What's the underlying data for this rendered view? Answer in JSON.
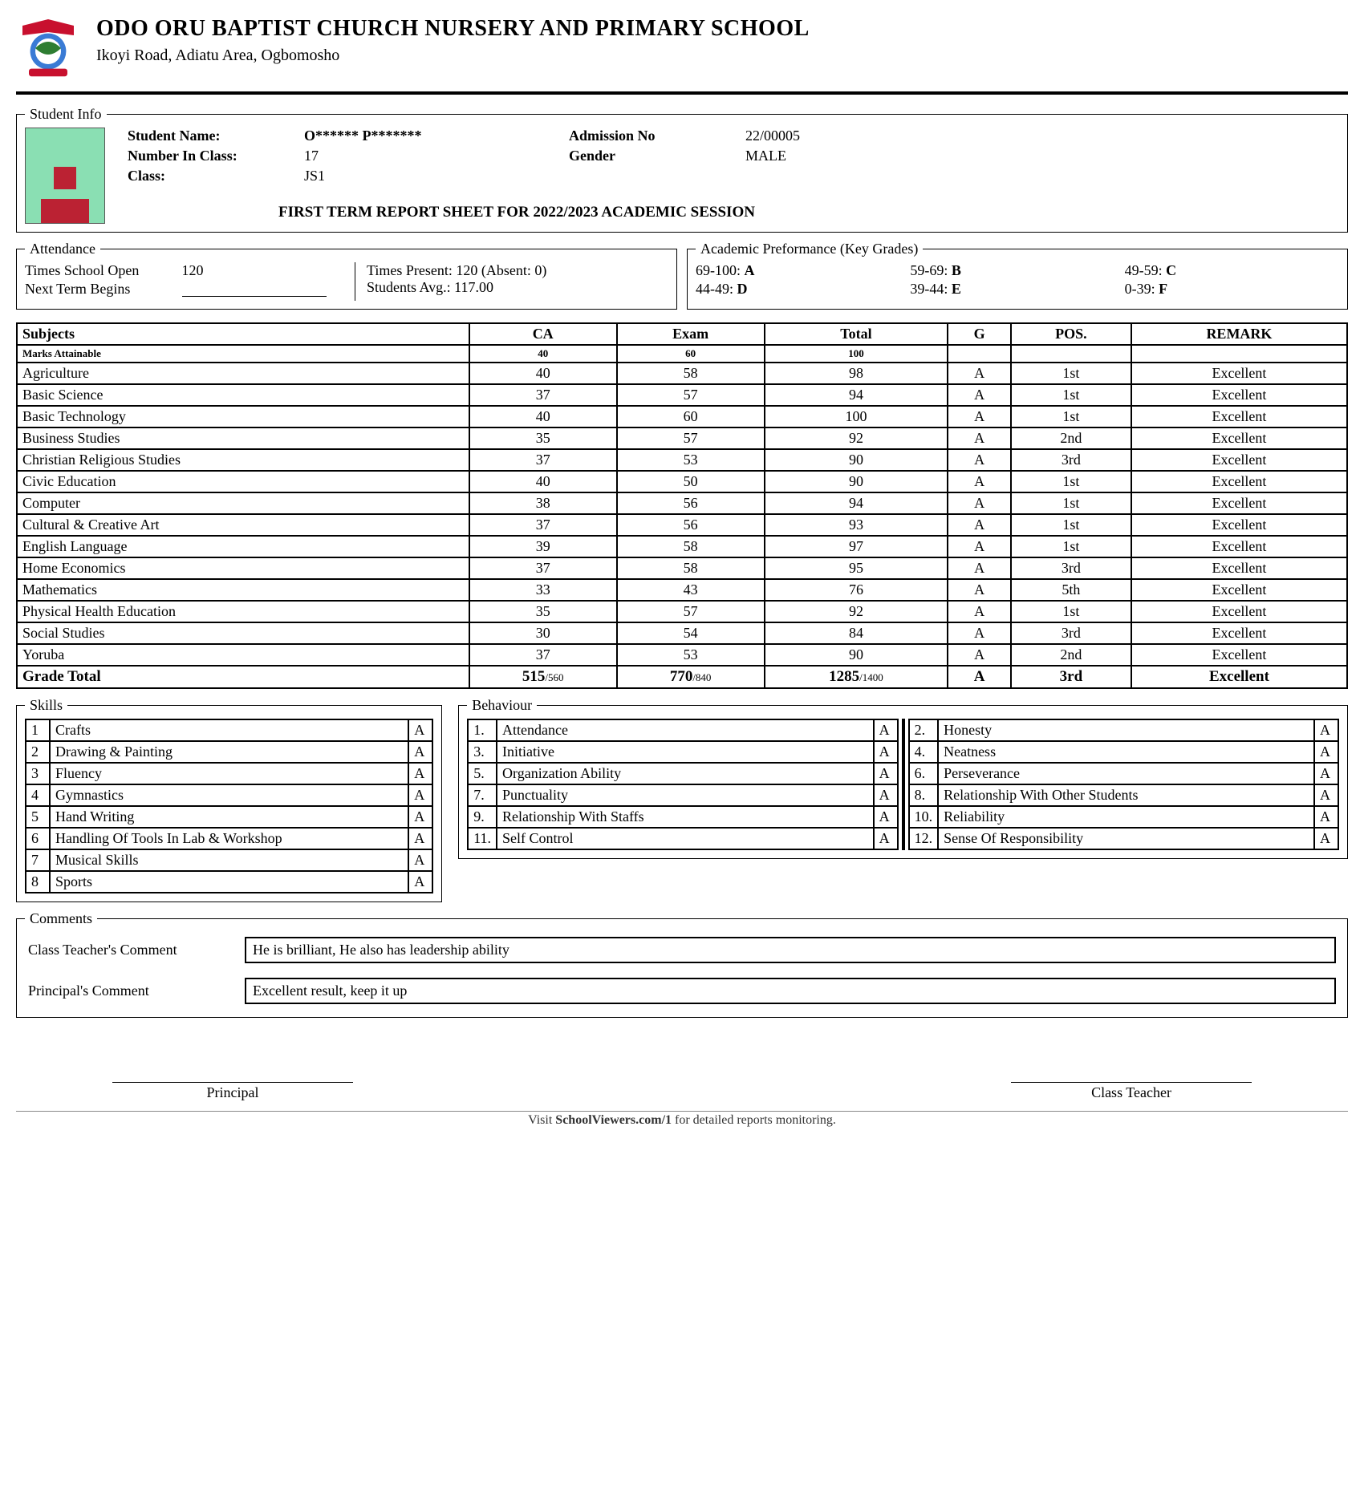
{
  "school": {
    "name": "ODO ORU BAPTIST CHURCH NURSERY AND PRIMARY SCHOOL",
    "address": "Ikoyi Road, Adiatu Area, Ogbomosho"
  },
  "student": {
    "name_label": "Student Name:",
    "name": "O****** P*******",
    "number_label": "Number In Class:",
    "number": "17",
    "class_label": "Class:",
    "class": "JS1",
    "admission_label": "Admission No",
    "admission": "22/00005",
    "gender_label": "Gender",
    "gender": "MALE"
  },
  "session_title": "FIRST TERM REPORT SHEET FOR 2022/2023 ACADEMIC SESSION",
  "legends": {
    "student_info": "Student Info",
    "attendance": "Attendance",
    "keygrades": "Academic Preformance (Key Grades)",
    "skills": "Skills",
    "behaviour": "Behaviour",
    "comments": "Comments"
  },
  "attendance": {
    "open_label": "Times School Open",
    "open_value": "120",
    "next_label": "Next Term Begins",
    "present_label": "Times Present: 120  (Absent: 0)",
    "avg_label": "Students Avg.:  117.00"
  },
  "keygrades": [
    {
      "range": "69-100:",
      "g": "A"
    },
    {
      "range": "59-69:",
      "g": "B"
    },
    {
      "range": "49-59:",
      "g": "C"
    },
    {
      "range": "44-49:",
      "g": "D"
    },
    {
      "range": "39-44:",
      "g": "E"
    },
    {
      "range": "0-39:",
      "g": "F"
    }
  ],
  "subjects_header": {
    "subjects": "Subjects",
    "ca": "CA",
    "exam": "Exam",
    "total": "Total",
    "g": "G",
    "pos": "POS.",
    "remark": "REMARK",
    "marks_label": "Marks Attainable",
    "ca_max": "40",
    "exam_max": "60",
    "total_max": "100"
  },
  "subjects": [
    {
      "name": "Agriculture",
      "ca": "40",
      "exam": "58",
      "total": "98",
      "g": "A",
      "pos": "1st",
      "remark": "Excellent"
    },
    {
      "name": "Basic Science",
      "ca": "37",
      "exam": "57",
      "total": "94",
      "g": "A",
      "pos": "1st",
      "remark": "Excellent"
    },
    {
      "name": "Basic Technology",
      "ca": "40",
      "exam": "60",
      "total": "100",
      "g": "A",
      "pos": "1st",
      "remark": "Excellent"
    },
    {
      "name": "Business Studies",
      "ca": "35",
      "exam": "57",
      "total": "92",
      "g": "A",
      "pos": "2nd",
      "remark": "Excellent"
    },
    {
      "name": "Christian Religious Studies",
      "ca": "37",
      "exam": "53",
      "total": "90",
      "g": "A",
      "pos": "3rd",
      "remark": "Excellent"
    },
    {
      "name": "Civic Education",
      "ca": "40",
      "exam": "50",
      "total": "90",
      "g": "A",
      "pos": "1st",
      "remark": "Excellent"
    },
    {
      "name": "Computer",
      "ca": "38",
      "exam": "56",
      "total": "94",
      "g": "A",
      "pos": "1st",
      "remark": "Excellent"
    },
    {
      "name": "Cultural & Creative Art",
      "ca": "37",
      "exam": "56",
      "total": "93",
      "g": "A",
      "pos": "1st",
      "remark": "Excellent"
    },
    {
      "name": "English Language",
      "ca": "39",
      "exam": "58",
      "total": "97",
      "g": "A",
      "pos": "1st",
      "remark": "Excellent"
    },
    {
      "name": "Home Economics",
      "ca": "37",
      "exam": "58",
      "total": "95",
      "g": "A",
      "pos": "3rd",
      "remark": "Excellent"
    },
    {
      "name": "Mathematics",
      "ca": "33",
      "exam": "43",
      "total": "76",
      "g": "A",
      "pos": "5th",
      "remark": "Excellent"
    },
    {
      "name": "Physical Health Education",
      "ca": "35",
      "exam": "57",
      "total": "92",
      "g": "A",
      "pos": "1st",
      "remark": "Excellent"
    },
    {
      "name": "Social Studies",
      "ca": "30",
      "exam": "54",
      "total": "84",
      "g": "A",
      "pos": "3rd",
      "remark": "Excellent"
    },
    {
      "name": "Yoruba",
      "ca": "37",
      "exam": "53",
      "total": "90",
      "g": "A",
      "pos": "2nd",
      "remark": "Excellent"
    }
  ],
  "grade_total": {
    "label": "Grade Total",
    "ca": "515",
    "ca_max": "/560",
    "exam": "770",
    "exam_max": "/840",
    "total": "1285",
    "total_max": "/1400",
    "g": "A",
    "pos": "3rd",
    "remark": "Excellent"
  },
  "skills": [
    {
      "n": "1",
      "name": "Crafts",
      "g": "A"
    },
    {
      "n": "2",
      "name": "Drawing & Painting",
      "g": "A"
    },
    {
      "n": "3",
      "name": "Fluency",
      "g": "A"
    },
    {
      "n": "4",
      "name": "Gymnastics",
      "g": "A"
    },
    {
      "n": "5",
      "name": "Hand Writing",
      "g": "A"
    },
    {
      "n": "6",
      "name": "Handling Of Tools In Lab & Workshop",
      "g": "A"
    },
    {
      "n": "7",
      "name": "Musical Skills",
      "g": "A"
    },
    {
      "n": "8",
      "name": "Sports",
      "g": "A"
    }
  ],
  "behaviour_left": [
    {
      "n": "1.",
      "name": "Attendance",
      "g": "A"
    },
    {
      "n": "3.",
      "name": "Initiative",
      "g": "A"
    },
    {
      "n": "5.",
      "name": "Organization Ability",
      "g": "A"
    },
    {
      "n": "7.",
      "name": "Punctuality",
      "g": "A"
    },
    {
      "n": "9.",
      "name": "Relationship With Staffs",
      "g": "A"
    },
    {
      "n": "11.",
      "name": "Self Control",
      "g": "A"
    }
  ],
  "behaviour_right": [
    {
      "n": "2.",
      "name": "Honesty",
      "g": "A"
    },
    {
      "n": "4.",
      "name": "Neatness",
      "g": "A"
    },
    {
      "n": "6.",
      "name": "Perseverance",
      "g": "A"
    },
    {
      "n": "8.",
      "name": "Relationship With Other Students",
      "g": "A"
    },
    {
      "n": "10.",
      "name": "Reliability",
      "g": "A"
    },
    {
      "n": "12.",
      "name": "Sense Of Responsibility",
      "g": "A"
    }
  ],
  "comments": {
    "teacher_label": "Class Teacher's Comment",
    "teacher": "He is brilliant, He also has leadership ability",
    "principal_label": "Principal's Comment",
    "principal": "Excellent result, keep it up"
  },
  "signatures": {
    "principal": "Principal",
    "teacher": "Class Teacher"
  },
  "footer": {
    "pre": "Visit ",
    "bold": "SchoolViewers.com/1",
    "post": " for detailed reports monitoring."
  }
}
